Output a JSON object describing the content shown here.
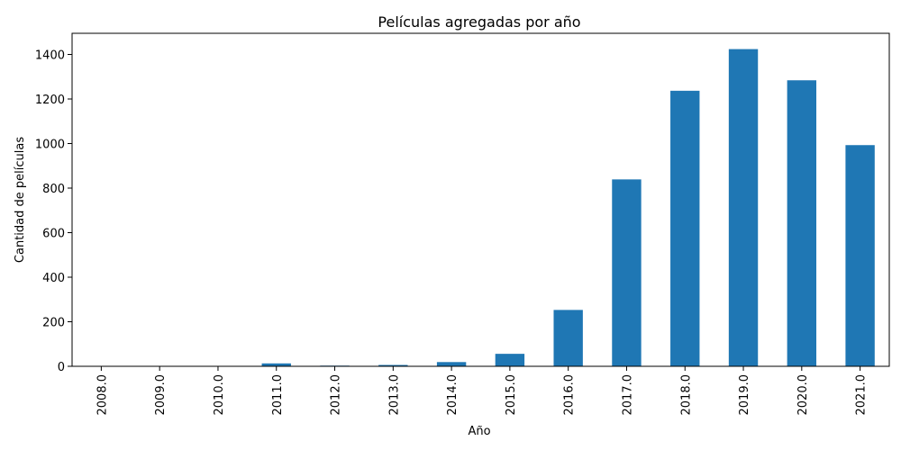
{
  "chart_data": {
    "type": "bar",
    "title": "Películas agregadas por año",
    "xlabel": "Año",
    "ylabel": "Cantidad de películas",
    "categories": [
      "2008.0",
      "2009.0",
      "2010.0",
      "2011.0",
      "2012.0",
      "2013.0",
      "2014.0",
      "2015.0",
      "2016.0",
      "2017.0",
      "2018.0",
      "2019.0",
      "2020.0",
      "2021.0"
    ],
    "values": [
      1,
      2,
      1,
      13,
      3,
      6,
      19,
      56,
      253,
      839,
      1237,
      1424,
      1284,
      993
    ],
    "ylim": [
      0,
      1495
    ],
    "yticks": [
      0,
      200,
      400,
      600,
      800,
      1000,
      1200,
      1400
    ],
    "bar_color": "#1f77b4",
    "grid": false,
    "legend": "none"
  }
}
